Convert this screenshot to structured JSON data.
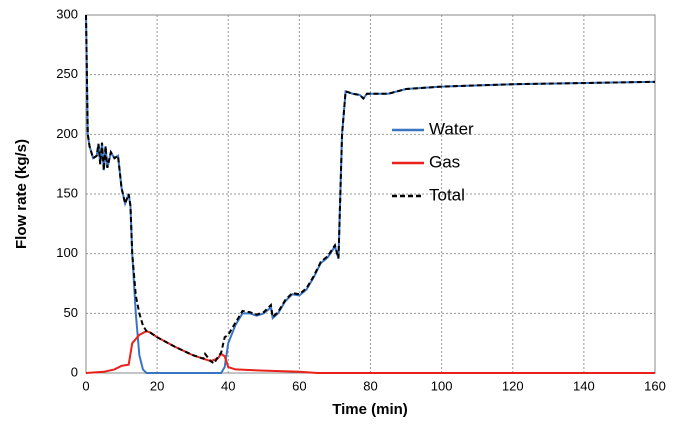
{
  "chart_data": {
    "type": "line",
    "xlabel": "Time (min)",
    "ylabel": "Flow rate (kg/s)",
    "xlim": [
      0,
      160
    ],
    "xticks": [
      0,
      20,
      40,
      60,
      80,
      100,
      120,
      140,
      160
    ],
    "ylim": [
      0,
      300
    ],
    "yticks": [
      0,
      50,
      100,
      150,
      200,
      250,
      300
    ],
    "grid": true,
    "legend": "center",
    "series": [
      {
        "name": "Water",
        "color": "#3a75c4",
        "x": [
          0,
          0.5,
          1,
          2,
          3,
          3.5,
          4,
          4.5,
          5,
          5.5,
          6,
          7,
          8,
          9,
          10,
          11,
          12,
          12.5,
          13,
          14,
          15,
          16,
          17,
          20,
          38,
          39,
          40,
          42,
          44,
          46,
          48,
          50,
          52,
          52.5,
          54,
          56,
          58,
          60,
          62,
          64,
          66,
          68,
          70,
          71,
          72,
          73,
          75,
          77,
          78,
          79,
          85,
          90,
          100,
          120,
          140,
          160
        ],
        "values": [
          300,
          200,
          190,
          180,
          182,
          192,
          175,
          193,
          170,
          190,
          172,
          185,
          180,
          182,
          155,
          142,
          150,
          140,
          100,
          50,
          15,
          3,
          0,
          0,
          0,
          5,
          25,
          40,
          50,
          50,
          48,
          50,
          55,
          46,
          50,
          60,
          66,
          65,
          70,
          80,
          92,
          97,
          106,
          96,
          200,
          236,
          234,
          233,
          230,
          234,
          234,
          238,
          240,
          242,
          243,
          244
        ]
      },
      {
        "name": "Gas",
        "color": "#e8211a",
        "x": [
          0,
          5,
          8,
          10,
          12,
          13,
          15,
          17,
          18,
          20,
          25,
          30,
          33,
          35,
          37,
          38,
          39,
          40,
          42,
          50,
          60,
          65,
          160
        ],
        "values": [
          0,
          1,
          3,
          6,
          7,
          25,
          32,
          35,
          34,
          30,
          22,
          15,
          12,
          10,
          12,
          16,
          14,
          5,
          3,
          2,
          1,
          0,
          0
        ]
      },
      {
        "name": "Total",
        "color": "#000000",
        "dash": true,
        "x": [
          0,
          0.5,
          1,
          2,
          3,
          3.5,
          4,
          4.5,
          5,
          5.5,
          6,
          7,
          8,
          9,
          10,
          11,
          12,
          12.5,
          13,
          14,
          15,
          16,
          17,
          18,
          20,
          25,
          30,
          33,
          33.5,
          35,
          36,
          37,
          38,
          39,
          40,
          42,
          44,
          46,
          48,
          50,
          52,
          52.5,
          54,
          56,
          58,
          60,
          62,
          64,
          66,
          68,
          70,
          71,
          72,
          73,
          75,
          77,
          78,
          79,
          85,
          90,
          100,
          120,
          140,
          160
        ],
        "values": [
          300,
          200,
          190,
          180,
          182,
          192,
          175,
          193,
          170,
          190,
          172,
          185,
          180,
          182,
          155,
          142,
          150,
          140,
          100,
          65,
          50,
          40,
          35,
          34,
          30,
          22,
          15,
          12,
          16,
          10,
          8,
          13,
          17,
          30,
          32,
          42,
          52,
          51,
          49,
          51,
          57,
          47,
          51,
          61,
          67,
          66,
          71,
          81,
          93,
          98,
          107,
          96,
          200,
          236,
          234,
          233,
          230,
          234,
          234,
          238,
          240,
          242,
          243,
          244
        ]
      }
    ]
  }
}
